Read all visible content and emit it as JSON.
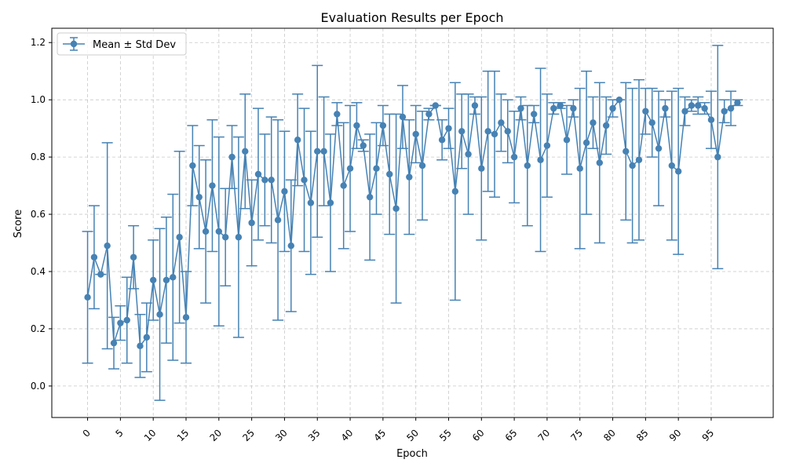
{
  "chart_data": {
    "type": "line",
    "title": "Evaluation Results per Epoch",
    "xlabel": "Epoch",
    "ylabel": "Score",
    "xlim": [
      -5.45,
      104.45
    ],
    "ylim": [
      -0.11,
      1.25
    ],
    "xticks": [
      "0",
      "5",
      "10",
      "15",
      "20",
      "25",
      "30",
      "35",
      "40",
      "45",
      "50",
      "55",
      "60",
      "65",
      "70",
      "75",
      "80",
      "85",
      "90",
      "95"
    ],
    "yticks": [
      "0.0",
      "0.2",
      "0.4",
      "0.6",
      "0.8",
      "1.0",
      "1.2"
    ],
    "grid": true,
    "legend": {
      "position": "top-left",
      "label": "Mean ± Std Dev"
    },
    "color": "#4682b4",
    "series": [
      {
        "name": "Mean ± Std Dev",
        "x": [
          0,
          1,
          2,
          3,
          4,
          5,
          6,
          7,
          8,
          9,
          10,
          11,
          12,
          13,
          14,
          15,
          16,
          17,
          18,
          19,
          20,
          21,
          22,
          23,
          24,
          25,
          26,
          27,
          28,
          29,
          30,
          31,
          32,
          33,
          34,
          35,
          36,
          37,
          38,
          39,
          40,
          41,
          42,
          43,
          44,
          45,
          46,
          47,
          48,
          49,
          50,
          51,
          52,
          53,
          54,
          55,
          56,
          57,
          58,
          59,
          60,
          61,
          62,
          63,
          64,
          65,
          66,
          67,
          68,
          69,
          70,
          71,
          72,
          73,
          74,
          75,
          76,
          77,
          78,
          79,
          80,
          81,
          82,
          83,
          84,
          85,
          86,
          87,
          88,
          89,
          90,
          91,
          92,
          93,
          94,
          95,
          96,
          97,
          98,
          99
        ],
        "y": [
          0.31,
          0.45,
          0.39,
          0.49,
          0.15,
          0.22,
          0.23,
          0.45,
          0.14,
          0.17,
          0.37,
          0.25,
          0.37,
          0.38,
          0.52,
          0.24,
          0.77,
          0.66,
          0.54,
          0.7,
          0.54,
          0.52,
          0.8,
          0.52,
          0.82,
          0.57,
          0.74,
          0.72,
          0.72,
          0.58,
          0.68,
          0.49,
          0.86,
          0.72,
          0.64,
          0.82,
          0.82,
          0.64,
          0.95,
          0.7,
          0.76,
          0.91,
          0.84,
          0.66,
          0.76,
          0.91,
          0.74,
          0.62,
          0.94,
          0.73,
          0.88,
          0.77,
          0.95,
          0.98,
          0.86,
          0.9,
          0.68,
          0.89,
          0.81,
          0.98,
          0.76,
          0.89,
          0.88,
          0.92,
          0.89,
          0.8,
          0.97,
          0.77,
          0.95,
          0.79,
          0.84,
          0.97,
          0.98,
          0.86,
          0.97,
          0.76,
          0.85,
          0.92,
          0.78,
          0.91,
          0.97,
          1.0,
          0.82,
          0.77,
          0.79,
          0.96,
          0.92,
          0.83,
          0.97,
          0.77,
          0.75,
          0.96,
          0.98,
          0.98,
          0.97,
          0.93,
          0.8,
          0.96,
          0.97,
          0.99
        ],
        "std": [
          0.23,
          0.18,
          0.0,
          0.36,
          0.09,
          0.06,
          0.15,
          0.11,
          0.11,
          0.12,
          0.14,
          0.3,
          0.22,
          0.29,
          0.3,
          0.16,
          0.14,
          0.18,
          0.25,
          0.23,
          0.33,
          0.17,
          0.11,
          0.35,
          0.2,
          0.15,
          0.23,
          0.16,
          0.22,
          0.35,
          0.21,
          0.23,
          0.16,
          0.25,
          0.25,
          0.3,
          0.19,
          0.24,
          0.04,
          0.22,
          0.22,
          0.08,
          0.02,
          0.22,
          0.16,
          0.07,
          0.21,
          0.33,
          0.11,
          0.2,
          0.1,
          0.19,
          0.02,
          0.0,
          0.07,
          0.07,
          0.38,
          0.13,
          0.21,
          0.03,
          0.25,
          0.21,
          0.22,
          0.1,
          0.11,
          0.16,
          0.04,
          0.21,
          0.03,
          0.32,
          0.18,
          0.02,
          0.01,
          0.12,
          0.03,
          0.28,
          0.25,
          0.09,
          0.28,
          0.1,
          0.03,
          0.0,
          0.24,
          0.27,
          0.28,
          0.08,
          0.12,
          0.2,
          0.03,
          0.26,
          0.29,
          0.05,
          0.02,
          0.03,
          0.02,
          0.1,
          0.39,
          0.04,
          0.06,
          0.01
        ]
      }
    ]
  }
}
